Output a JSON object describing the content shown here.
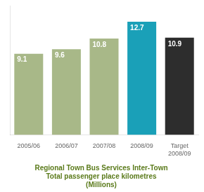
{
  "chart_data": {
    "type": "bar",
    "title": [
      "Regional Town Bus Services Inter-Town",
      "Total passenger place kilometres",
      "(Millions)"
    ],
    "categories": [
      "2005/06",
      "2006/07",
      "2007/08",
      "2008/09",
      "Target\n2008/09"
    ],
    "values": [
      9.1,
      9.6,
      10.8,
      12.7,
      10.9
    ],
    "colors": [
      "#a8b888",
      "#a8b888",
      "#a8b888",
      "#1aA0b8",
      "#2d2d2d"
    ],
    "ylim": [
      0,
      14.5
    ],
    "grid": false,
    "data_labels": true,
    "tick_labels": "x"
  }
}
